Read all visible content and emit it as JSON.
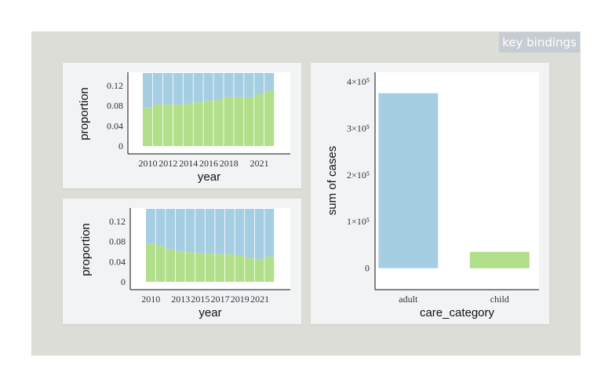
{
  "ui": {
    "key_bindings_label": "key bindings"
  },
  "colors": {
    "blue": "#a6cee3",
    "green": "#b2df8a"
  },
  "chart_data": [
    {
      "id": "p1",
      "type": "bar",
      "stacked": true,
      "xlabel": "year",
      "ylabel": "proportion",
      "x": [
        2010,
        2011,
        2012,
        2013,
        2014,
        2015,
        2016,
        2017,
        2018,
        2019,
        2020,
        2021,
        2022
      ],
      "xticks": [
        2010,
        2012,
        2014,
        2016,
        2018,
        2021
      ],
      "yticks": [
        0,
        0.04,
        0.08,
        0.12
      ],
      "ytick_labels": [
        "0",
        "0.04",
        "0.08",
        "0.12"
      ],
      "ylim": [
        0,
        0.145
      ],
      "series": [
        {
          "values": [
            0.076,
            0.083,
            0.082,
            0.082,
            0.084,
            0.087,
            0.09,
            0.092,
            0.097,
            0.097,
            0.096,
            0.103,
            0.11
          ]
        },
        {
          "values": [
            0.069,
            0.062,
            0.063,
            0.063,
            0.061,
            0.058,
            0.055,
            0.053,
            0.048,
            0.048,
            0.049,
            0.042,
            0.035
          ]
        }
      ]
    },
    {
      "id": "p2",
      "type": "bar",
      "stacked": true,
      "xlabel": "year",
      "ylabel": "proportion",
      "x": [
        2010,
        2011,
        2012,
        2013,
        2014,
        2015,
        2016,
        2017,
        2018,
        2019,
        2020,
        2021,
        2022
      ],
      "xticks": [
        2010,
        2013,
        2015,
        2017,
        2019,
        2021
      ],
      "xtick_labels": [
        "2010",
        "2013",
        "2015",
        "2017",
        "2019",
        "2021"
      ],
      "yticks": [
        0,
        0.04,
        0.08,
        0.12
      ],
      "ytick_labels": [
        "0",
        "0.04",
        "0.08",
        "0.12"
      ],
      "ylim": [
        0,
        0.145
      ],
      "series": [
        {
          "values": [
            0.076,
            0.072,
            0.065,
            0.061,
            0.059,
            0.057,
            0.056,
            0.055,
            0.055,
            0.053,
            0.047,
            0.045,
            0.05
          ]
        },
        {
          "values": [
            0.069,
            0.073,
            0.08,
            0.084,
            0.086,
            0.088,
            0.089,
            0.09,
            0.09,
            0.092,
            0.098,
            0.1,
            0.095
          ]
        }
      ]
    },
    {
      "id": "p3",
      "type": "bar",
      "xlabel": "care_category",
      "ylabel": "sum of cases",
      "categories": [
        "adult",
        "child"
      ],
      "values": [
        375000,
        35000
      ],
      "yticks": [
        0,
        100000,
        200000,
        300000,
        400000
      ],
      "ytick_labels": [
        "0",
        "1×10⁵",
        "2×10⁵",
        "3×10⁵",
        "4×10⁵"
      ],
      "ylim": [
        -46000,
        420000
      ]
    }
  ]
}
